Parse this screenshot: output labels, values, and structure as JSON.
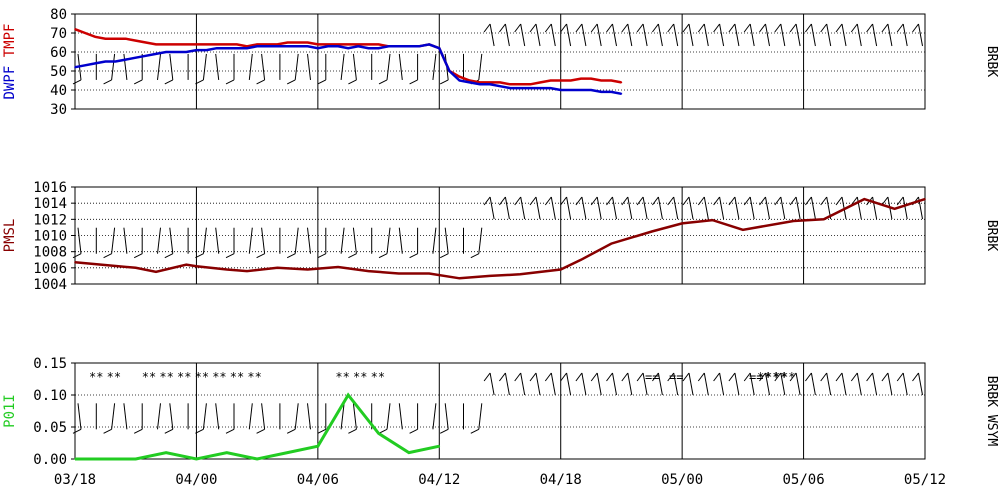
{
  "station": "BRBK",
  "x_ticks": [
    "03/18",
    "04/00",
    "04/06",
    "04/12",
    "04/18",
    "05/00",
    "05/06",
    "05/12"
  ],
  "chart_data": [
    {
      "type": "line",
      "ylabel": [
        "DWPF",
        "TMPF"
      ],
      "ylim": [
        30,
        80
      ],
      "yticks": [
        30,
        40,
        50,
        60,
        70,
        80
      ],
      "right_label": "BRBK",
      "grid": true,
      "x": [
        0,
        1,
        2,
        3,
        4,
        5,
        6,
        7,
        8,
        9,
        10,
        11,
        12,
        13,
        14,
        15,
        16,
        17,
        18,
        19,
        20,
        21,
        22,
        23,
        24,
        25,
        26,
        27,
        28,
        29,
        30,
        31,
        32,
        33,
        34,
        35,
        36,
        37,
        38,
        39,
        40,
        41,
        42,
        43,
        44,
        45,
        46,
        47,
        48,
        49,
        50,
        51,
        52,
        53,
        54
      ],
      "series": [
        {
          "name": "TMPF",
          "color": "#cc0000",
          "values": [
            72,
            70,
            68,
            67,
            67,
            67,
            66,
            65,
            64,
            64,
            64,
            64,
            64,
            64,
            64,
            64,
            64,
            63,
            64,
            64,
            64,
            65,
            65,
            65,
            64,
            64,
            64,
            64,
            64,
            64,
            64,
            63,
            63,
            63,
            63,
            64,
            62,
            50,
            47,
            45,
            44,
            44,
            44,
            43,
            43,
            43,
            44,
            45,
            45,
            45,
            46,
            46,
            45,
            45,
            44
          ]
        },
        {
          "name": "DWPF",
          "color": "#0000cc",
          "values": [
            52,
            53,
            54,
            55,
            55,
            56,
            57,
            58,
            59,
            60,
            60,
            60,
            61,
            61,
            62,
            62,
            62,
            62,
            63,
            63,
            63,
            63,
            63,
            63,
            62,
            63,
            63,
            62,
            63,
            62,
            62,
            63,
            63,
            63,
            63,
            64,
            62,
            50,
            45,
            44,
            43,
            43,
            42,
            41,
            41,
            41,
            41,
            41,
            40,
            40,
            40,
            40,
            39,
            39,
            38
          ]
        }
      ]
    },
    {
      "type": "line",
      "ylabel": [
        "PMSL"
      ],
      "ylim": [
        1004,
        1016
      ],
      "yticks": [
        1004,
        1006,
        1008,
        1010,
        1012,
        1014,
        1016
      ],
      "right_label": "BRBK",
      "grid": true,
      "x": [
        0,
        6,
        8,
        11,
        12,
        15,
        17,
        20,
        23,
        26,
        29,
        32,
        35,
        38,
        41,
        44,
        48,
        50,
        53,
        57,
        60,
        63,
        66,
        71,
        74,
        78,
        81,
        84
      ],
      "series": [
        {
          "name": "PMSL",
          "color": "#880000",
          "values": [
            1006.7,
            1006.0,
            1005.5,
            1006.4,
            1006.2,
            1005.8,
            1005.6,
            1006.0,
            1005.8,
            1006.1,
            1005.6,
            1005.3,
            1005.3,
            1004.7,
            1005.0,
            1005.2,
            1005.8,
            1007.0,
            1009.0,
            1010.5,
            1011.5,
            1011.9,
            1010.7,
            1011.8,
            1012.0,
            1014.5,
            1013.3,
            1014.5
          ]
        }
      ]
    },
    {
      "type": "line",
      "ylabel": [
        "P01I"
      ],
      "ylim": [
        0,
        0.15
      ],
      "yticks": [
        "0.00",
        "0.05",
        "0.10",
        "0.15"
      ],
      "right_label": "BRBK WSYM",
      "grid": true,
      "x": [
        0,
        3,
        6,
        9,
        12,
        15,
        18,
        21,
        24,
        27,
        30,
        33,
        36
      ],
      "series": [
        {
          "name": "P01I",
          "color": "#22cc22",
          "values": [
            0,
            0,
            0,
            0.01,
            0,
            0.01,
            0,
            0.01,
            0.02,
            0.1,
            0.04,
            0.01,
            0.02
          ]
        }
      ],
      "weather_symbols": [
        "**",
        "**",
        "**",
        "**",
        "**",
        "**",
        "**",
        "**",
        "**",
        "**",
        "**",
        "**",
        "==",
        "==",
        "==",
        "**",
        "**",
        "**",
        "**"
      ]
    }
  ]
}
